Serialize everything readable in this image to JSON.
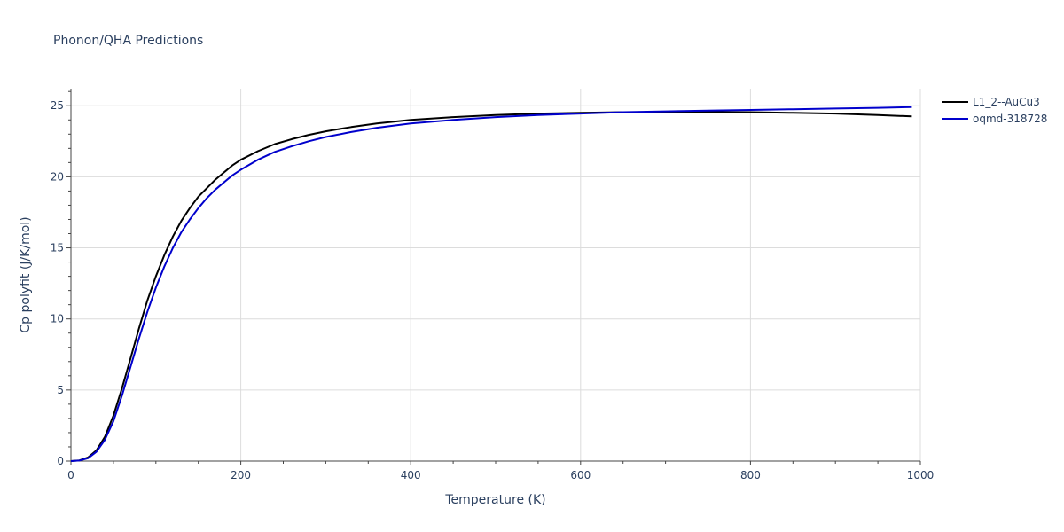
{
  "chart_data": {
    "type": "line",
    "title": "Phonon/QHA Predictions",
    "xlabel": "Temperature (K)",
    "ylabel": "Cp polyfit (J/K/mol)",
    "xlim": [
      0,
      1000
    ],
    "ylim": [
      0,
      26.2
    ],
    "x_ticks": [
      0,
      200,
      400,
      600,
      800,
      1000
    ],
    "x_tick_labels": [
      "0",
      "200",
      "400",
      "600",
      "800",
      "1000"
    ],
    "y_ticks": [
      0,
      5,
      10,
      15,
      20,
      25
    ],
    "y_tick_labels": [
      "0",
      "5",
      "10",
      "15",
      "20",
      "25"
    ],
    "grid": true,
    "legend_position": "top-right",
    "series": [
      {
        "name": "L1_2--AuCu3",
        "color": "#000000",
        "x": [
          0,
          10,
          20,
          30,
          40,
          50,
          60,
          70,
          80,
          90,
          100,
          110,
          120,
          130,
          140,
          150,
          160,
          170,
          180,
          190,
          200,
          220,
          240,
          260,
          280,
          300,
          330,
          360,
          400,
          450,
          500,
          550,
          600,
          650,
          700,
          750,
          800,
          850,
          900,
          950,
          990
        ],
        "y": [
          0,
          0.05,
          0.25,
          0.75,
          1.7,
          3.2,
          5.1,
          7.2,
          9.3,
          11.3,
          13.0,
          14.5,
          15.8,
          16.9,
          17.8,
          18.6,
          19.2,
          19.8,
          20.3,
          20.8,
          21.2,
          21.8,
          22.3,
          22.65,
          22.95,
          23.2,
          23.5,
          23.75,
          24.0,
          24.2,
          24.35,
          24.45,
          24.5,
          24.55,
          24.55,
          24.55,
          24.55,
          24.5,
          24.45,
          24.35,
          24.25
        ]
      },
      {
        "name": "oqmd-318728",
        "color": "#0000cc",
        "x": [
          0,
          10,
          20,
          30,
          40,
          50,
          60,
          70,
          80,
          90,
          100,
          110,
          120,
          130,
          140,
          150,
          160,
          170,
          180,
          190,
          200,
          220,
          240,
          260,
          280,
          300,
          330,
          360,
          400,
          450,
          500,
          550,
          600,
          650,
          700,
          750,
          800,
          850,
          900,
          950,
          990
        ],
        "y": [
          0,
          0.04,
          0.2,
          0.65,
          1.5,
          2.8,
          4.6,
          6.6,
          8.6,
          10.5,
          12.2,
          13.7,
          15.0,
          16.1,
          17.0,
          17.8,
          18.5,
          19.1,
          19.6,
          20.1,
          20.5,
          21.2,
          21.75,
          22.15,
          22.5,
          22.8,
          23.15,
          23.45,
          23.75,
          24.0,
          24.2,
          24.35,
          24.45,
          24.55,
          24.6,
          24.65,
          24.7,
          24.75,
          24.8,
          24.85,
          24.9
        ]
      }
    ]
  }
}
